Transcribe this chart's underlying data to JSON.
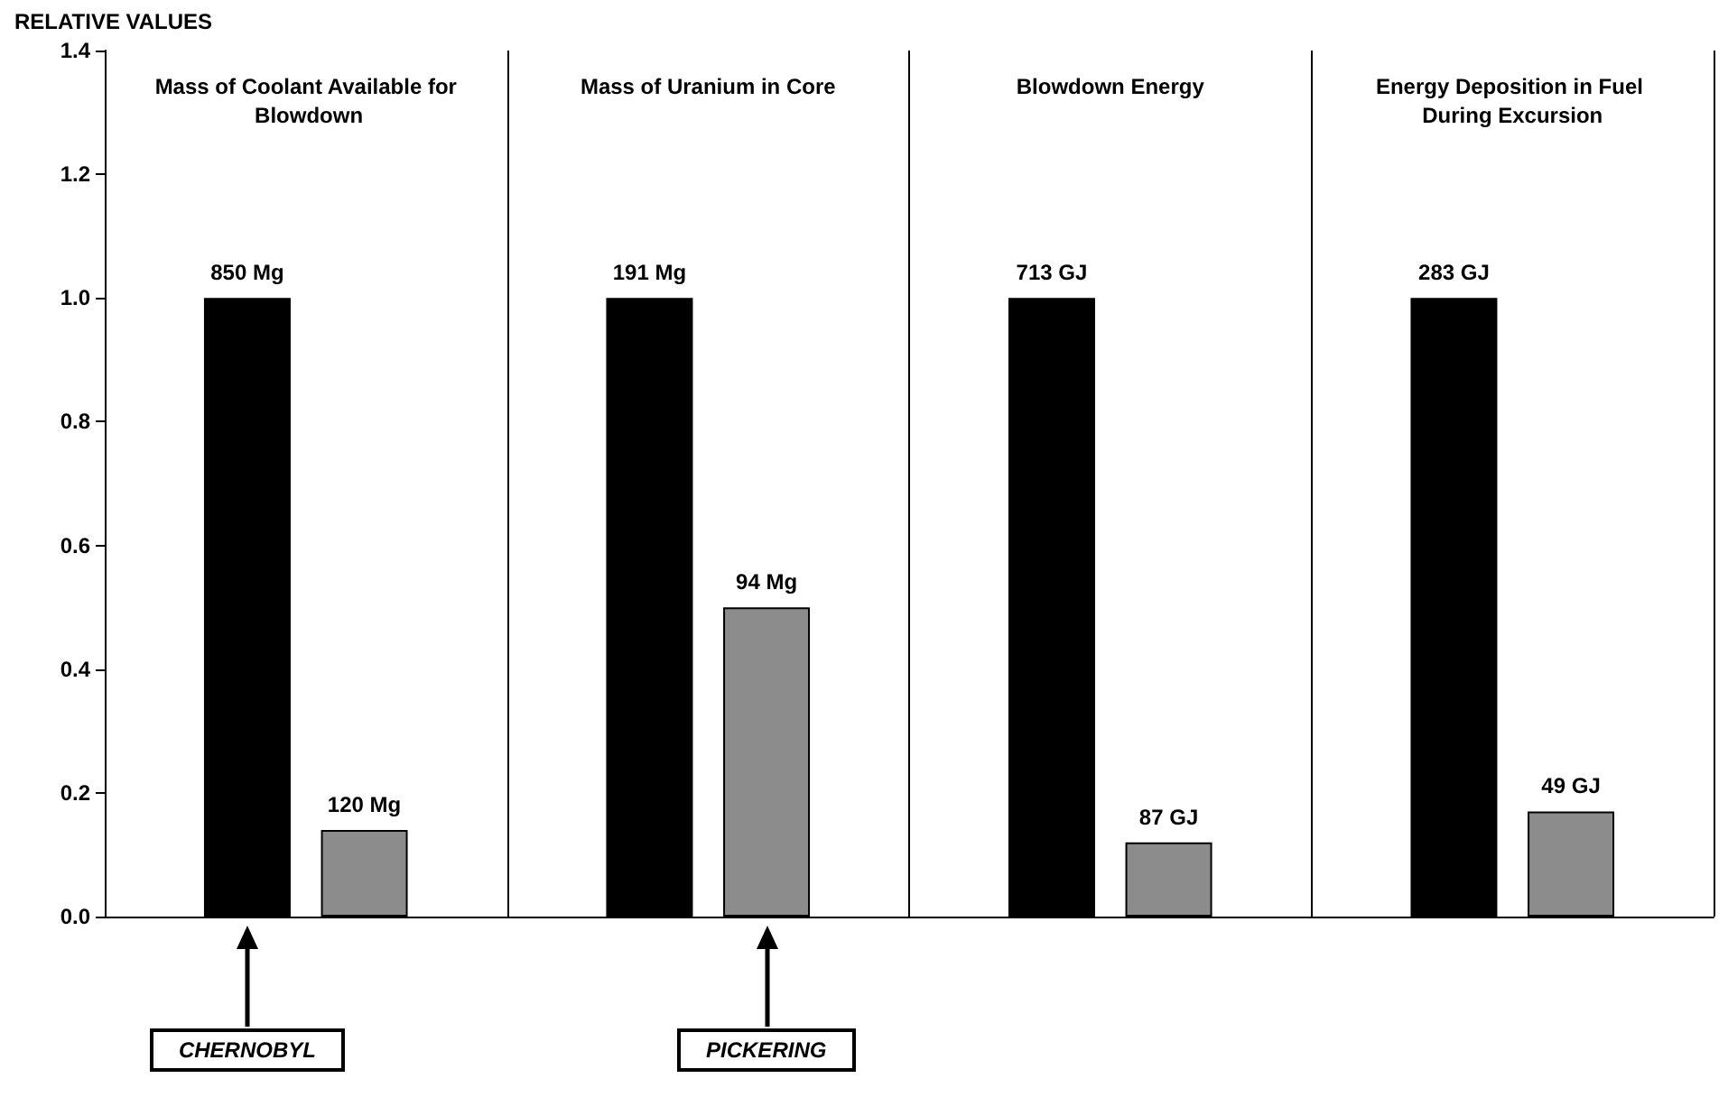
{
  "chart_data": {
    "type": "bar",
    "ylabel": "RELATIVE VALUES",
    "categories": [
      "Mass of Coolant Available for Blowdown",
      "Mass of Uranium in Core",
      "Blowdown Energy",
      "Energy Deposition in Fuel During Excursion"
    ],
    "series": [
      {
        "name": "CHERNOBYL",
        "color": "#000000",
        "values": [
          1.0,
          1.0,
          1.0,
          1.0
        ]
      },
      {
        "name": "PICKERING",
        "color": "#8c8c8c",
        "values": [
          0.14,
          0.5,
          0.12,
          0.17
        ]
      }
    ],
    "annotations": [
      "850 Mg",
      "120 Mg",
      "191 Mg",
      "94 Mg",
      "713 GJ",
      "87 GJ",
      "283 GJ",
      "49 GJ"
    ],
    "ylim": [
      0,
      1.4
    ],
    "yticks": [
      {
        "value": 0,
        "label": "0.0"
      },
      0.2,
      0.4,
      0.6,
      0.8,
      {
        "value": 1,
        "label": "1.0"
      },
      1.2,
      1.4
    ],
    "grid": "x"
  }
}
